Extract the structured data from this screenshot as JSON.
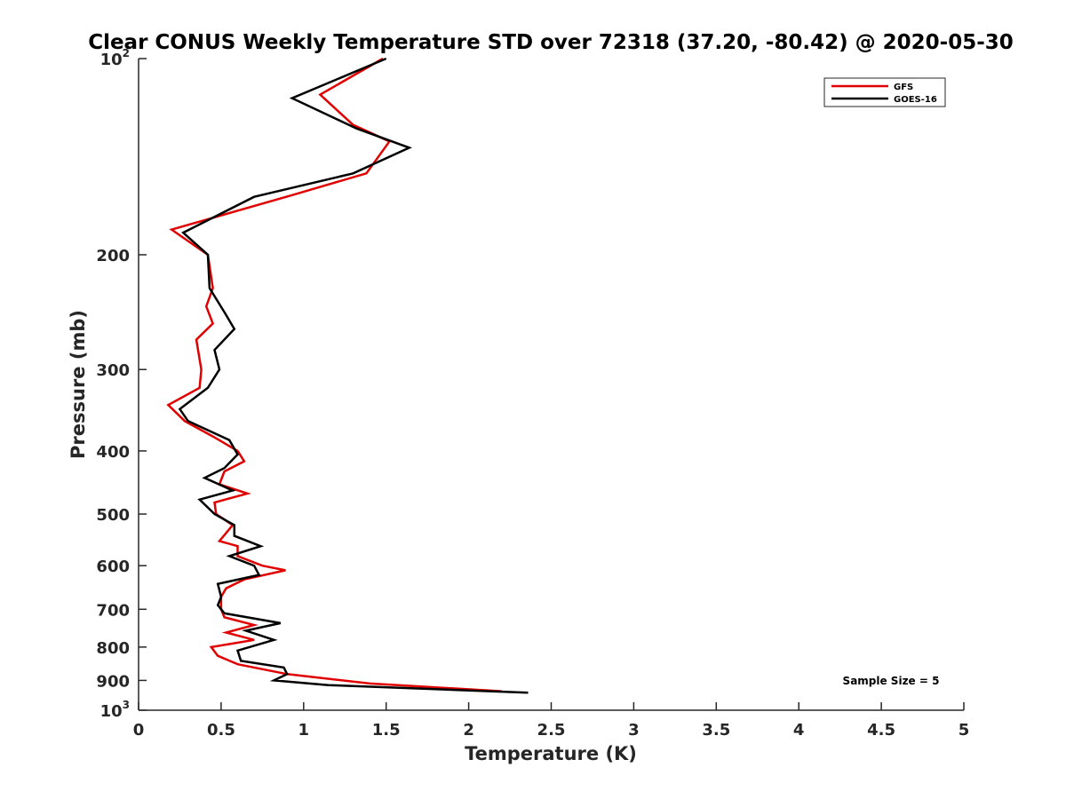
{
  "chart_data": {
    "type": "line",
    "title": "Clear CONUS Weekly Temperature STD over 72318 (37.20, -80.42) @ 2020-05-30",
    "xlabel": "Temperature (K)",
    "ylabel": "Pressure (mb)",
    "xlim": [
      0,
      5
    ],
    "ylim": [
      100,
      1000
    ],
    "y_scale": "log",
    "y_reversed": true,
    "grid": false,
    "legend_position": "top-right",
    "x_ticks": [
      "0",
      "0.5",
      "1",
      "1.5",
      "2",
      "2.5",
      "3",
      "3.5",
      "4",
      "4.5",
      "5"
    ],
    "y_ticks": [
      {
        "value": 100,
        "base": "10",
        "exp": "2"
      },
      {
        "value": 200,
        "label": "200"
      },
      {
        "value": 300,
        "label": "300"
      },
      {
        "value": 400,
        "label": "400"
      },
      {
        "value": 500,
        "label": "500"
      },
      {
        "value": 600,
        "label": "600"
      },
      {
        "value": 700,
        "label": "700"
      },
      {
        "value": 800,
        "label": "800"
      },
      {
        "value": 900,
        "label": "900"
      },
      {
        "value": 1000,
        "base": "10",
        "exp": "3"
      }
    ],
    "annotation": "Sample Size = 5",
    "series": [
      {
        "name": "GFS",
        "color": "#e00000",
        "points": [
          [
            1.48,
            100
          ],
          [
            1.1,
            113.6
          ],
          [
            1.3,
            126.4
          ],
          [
            1.52,
            134
          ],
          [
            1.38,
            150
          ],
          [
            0.93,
            162
          ],
          [
            0.2,
            183
          ],
          [
            0.42,
            200
          ],
          [
            0.45,
            225
          ],
          [
            0.41,
            240
          ],
          [
            0.45,
            255
          ],
          [
            0.35,
            270
          ],
          [
            0.38,
            300
          ],
          [
            0.37,
            320
          ],
          [
            0.18,
            340
          ],
          [
            0.28,
            360
          ],
          [
            0.45,
            380
          ],
          [
            0.6,
            400
          ],
          [
            0.64,
            415
          ],
          [
            0.52,
            430
          ],
          [
            0.49,
            450
          ],
          [
            0.66,
            465
          ],
          [
            0.46,
            480
          ],
          [
            0.47,
            500
          ],
          [
            0.57,
            520
          ],
          [
            0.49,
            550
          ],
          [
            0.6,
            560
          ],
          [
            0.6,
            580
          ],
          [
            0.75,
            600
          ],
          [
            0.89,
            610
          ],
          [
            0.64,
            630
          ],
          [
            0.53,
            650
          ],
          [
            0.5,
            670
          ],
          [
            0.5,
            700
          ],
          [
            0.52,
            720
          ],
          [
            0.7,
            740
          ],
          [
            0.53,
            760
          ],
          [
            0.7,
            780
          ],
          [
            0.44,
            800
          ],
          [
            0.48,
            825
          ],
          [
            0.6,
            850
          ],
          [
            0.9,
            880
          ],
          [
            1.4,
            910
          ],
          [
            2.2,
            935
          ]
        ]
      },
      {
        "name": "GOES-16",
        "color": "#000000",
        "points": [
          [
            1.5,
            100
          ],
          [
            0.93,
            115
          ],
          [
            1.32,
            128
          ],
          [
            1.64,
            137
          ],
          [
            1.3,
            150
          ],
          [
            0.7,
            163
          ],
          [
            0.27,
            185
          ],
          [
            0.42,
            200
          ],
          [
            0.43,
            225
          ],
          [
            0.52,
            245
          ],
          [
            0.58,
            260
          ],
          [
            0.46,
            280
          ],
          [
            0.49,
            300
          ],
          [
            0.42,
            320
          ],
          [
            0.25,
            345
          ],
          [
            0.3,
            360
          ],
          [
            0.55,
            385
          ],
          [
            0.6,
            405
          ],
          [
            0.52,
            425
          ],
          [
            0.4,
            440
          ],
          [
            0.57,
            460
          ],
          [
            0.37,
            475
          ],
          [
            0.46,
            500
          ],
          [
            0.58,
            520
          ],
          [
            0.58,
            540
          ],
          [
            0.74,
            560
          ],
          [
            0.55,
            580
          ],
          [
            0.7,
            600
          ],
          [
            0.73,
            620
          ],
          [
            0.48,
            640
          ],
          [
            0.5,
            670
          ],
          [
            0.48,
            690
          ],
          [
            0.52,
            710
          ],
          [
            0.86,
            735
          ],
          [
            0.65,
            755
          ],
          [
            0.82,
            780
          ],
          [
            0.6,
            810
          ],
          [
            0.62,
            840
          ],
          [
            0.88,
            860
          ],
          [
            0.9,
            880
          ],
          [
            0.82,
            900
          ],
          [
            1.15,
            915
          ],
          [
            2.36,
            940
          ]
        ]
      }
    ]
  }
}
